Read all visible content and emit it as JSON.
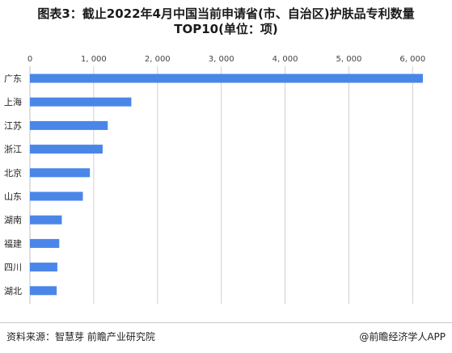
{
  "page": {
    "title_line1": "图表3：截止2022年4月中国当前申请省(市、自治区)护肤品专利数量",
    "title_line2": "TOP10(单位：项)",
    "source": "资料来源：智慧芽 前瞻产业研究院",
    "brand": "@前瞻经济学人APP"
  },
  "colors": {
    "bar": "#4a86e8",
    "grid": "#d0d0d0",
    "axis": "#bfbfbf"
  },
  "chart_data": {
    "type": "bar",
    "orientation": "horizontal",
    "categories": [
      "广东",
      "上海",
      "江苏",
      "浙江",
      "北京",
      "山东",
      "湖南",
      "福建",
      "四川",
      "湖北"
    ],
    "values": [
      6160,
      1590,
      1220,
      1140,
      940,
      830,
      500,
      460,
      430,
      420
    ],
    "xlim": [
      0,
      6300
    ],
    "xticks": [
      0,
      1000,
      2000,
      3000,
      4000,
      5000,
      6000
    ],
    "xtick_labels": [
      "0",
      "1, 000",
      "2, 000",
      "3, 000",
      "4, 000",
      "5, 000",
      "6, 000"
    ],
    "grid": true,
    "axis_position": "top",
    "legend": "none"
  }
}
